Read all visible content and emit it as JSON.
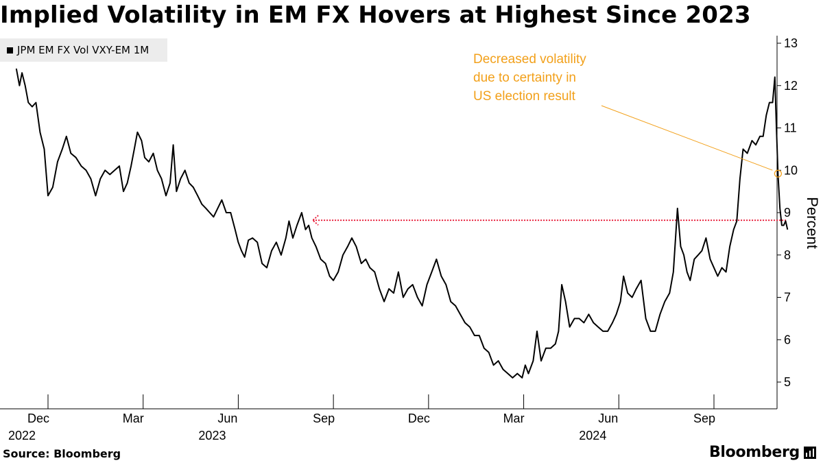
{
  "title": "Implied Volatility in EM FX Hovers at Highest Since 2023",
  "legend_label": "JPM EM FX Vol VXY-EM 1M",
  "source": "Source: Bloomberg",
  "brand": "Bloomberg",
  "colors": {
    "line": "#000000",
    "annotation": "#f2a01a",
    "reference": "#e8203c",
    "legend_bg": "#ececec"
  },
  "chart_data": {
    "type": "line",
    "title": "Implied Volatility in EM FX Hovers at Highest Since 2023",
    "ylabel": "Percent",
    "xlabel": "",
    "ylim": [
      4.5,
      13.2
    ],
    "yticks": [
      5,
      6,
      7,
      8,
      9,
      10,
      11,
      12,
      13
    ],
    "x_unit": "months since 2022-11-01",
    "xlim": [
      0,
      24.8
    ],
    "xticks": [
      {
        "x": 1,
        "label": "Dec",
        "year": "2022"
      },
      {
        "x": 4,
        "label": "Mar",
        "year": ""
      },
      {
        "x": 7,
        "label": "Jun",
        "year": "2023"
      },
      {
        "x": 10,
        "label": "Sep",
        "year": ""
      },
      {
        "x": 13,
        "label": "Dec",
        "year": ""
      },
      {
        "x": 16,
        "label": "Mar",
        "year": ""
      },
      {
        "x": 19,
        "label": "Jun",
        "year": "2024"
      },
      {
        "x": 22,
        "label": "Sep",
        "year": ""
      }
    ],
    "series": [
      {
        "name": "JPM EM FX Vol VXY-EM 1M",
        "points": [
          [
            0.0,
            12.4
          ],
          [
            0.1,
            12.0
          ],
          [
            0.18,
            12.3
          ],
          [
            0.28,
            12.0
          ],
          [
            0.38,
            11.6
          ],
          [
            0.5,
            11.5
          ],
          [
            0.62,
            11.6
          ],
          [
            0.75,
            10.9
          ],
          [
            0.88,
            10.5
          ],
          [
            1.0,
            9.4
          ],
          [
            1.15,
            9.6
          ],
          [
            1.3,
            10.2
          ],
          [
            1.45,
            10.5
          ],
          [
            1.58,
            10.8
          ],
          [
            1.72,
            10.4
          ],
          [
            1.88,
            10.3
          ],
          [
            2.05,
            10.1
          ],
          [
            2.2,
            10.0
          ],
          [
            2.35,
            9.8
          ],
          [
            2.5,
            9.4
          ],
          [
            2.65,
            9.8
          ],
          [
            2.8,
            10.0
          ],
          [
            2.95,
            9.9
          ],
          [
            3.1,
            10.0
          ],
          [
            3.25,
            10.1
          ],
          [
            3.38,
            9.5
          ],
          [
            3.5,
            9.7
          ],
          [
            3.62,
            10.1
          ],
          [
            3.72,
            10.5
          ],
          [
            3.82,
            10.9
          ],
          [
            3.95,
            10.7
          ],
          [
            4.05,
            10.3
          ],
          [
            4.18,
            10.2
          ],
          [
            4.32,
            10.4
          ],
          [
            4.45,
            10.0
          ],
          [
            4.58,
            9.8
          ],
          [
            4.72,
            9.4
          ],
          [
            4.85,
            9.7
          ],
          [
            4.95,
            10.6
          ],
          [
            5.05,
            9.5
          ],
          [
            5.18,
            9.8
          ],
          [
            5.32,
            10.0
          ],
          [
            5.45,
            9.7
          ],
          [
            5.58,
            9.6
          ],
          [
            5.72,
            9.4
          ],
          [
            5.85,
            9.2
          ],
          [
            5.98,
            9.1
          ],
          [
            6.1,
            9.0
          ],
          [
            6.22,
            8.9
          ],
          [
            6.35,
            9.1
          ],
          [
            6.48,
            9.3
          ],
          [
            6.62,
            9.0
          ],
          [
            6.76,
            9.0
          ],
          [
            6.9,
            8.6
          ],
          [
            7.0,
            8.3
          ],
          [
            7.1,
            8.1
          ],
          [
            7.2,
            7.95
          ],
          [
            7.32,
            8.35
          ],
          [
            7.45,
            8.4
          ],
          [
            7.6,
            8.3
          ],
          [
            7.75,
            7.8
          ],
          [
            7.9,
            7.7
          ],
          [
            8.05,
            8.1
          ],
          [
            8.2,
            8.3
          ],
          [
            8.35,
            8.0
          ],
          [
            8.5,
            8.4
          ],
          [
            8.6,
            8.8
          ],
          [
            8.72,
            8.4
          ],
          [
            8.85,
            8.7
          ],
          [
            9.0,
            9.0
          ],
          [
            9.12,
            8.6
          ],
          [
            9.22,
            8.7
          ],
          [
            9.32,
            8.4
          ],
          [
            9.45,
            8.2
          ],
          [
            9.6,
            7.9
          ],
          [
            9.75,
            7.8
          ],
          [
            9.88,
            7.5
          ],
          [
            10.0,
            7.4
          ],
          [
            10.15,
            7.6
          ],
          [
            10.3,
            8.0
          ],
          [
            10.45,
            8.2
          ],
          [
            10.58,
            8.4
          ],
          [
            10.72,
            8.2
          ],
          [
            10.88,
            7.8
          ],
          [
            11.02,
            7.9
          ],
          [
            11.15,
            7.7
          ],
          [
            11.3,
            7.6
          ],
          [
            11.45,
            7.2
          ],
          [
            11.6,
            6.9
          ],
          [
            11.75,
            7.2
          ],
          [
            11.9,
            7.1
          ],
          [
            12.05,
            7.6
          ],
          [
            12.2,
            7.0
          ],
          [
            12.35,
            7.2
          ],
          [
            12.5,
            7.3
          ],
          [
            12.65,
            7.0
          ],
          [
            12.8,
            6.8
          ],
          [
            12.95,
            7.3
          ],
          [
            13.1,
            7.6
          ],
          [
            13.25,
            7.9
          ],
          [
            13.4,
            7.5
          ],
          [
            13.55,
            7.3
          ],
          [
            13.7,
            6.9
          ],
          [
            13.85,
            6.8
          ],
          [
            14.0,
            6.6
          ],
          [
            14.15,
            6.4
          ],
          [
            14.3,
            6.3
          ],
          [
            14.45,
            6.1
          ],
          [
            14.6,
            6.1
          ],
          [
            14.75,
            5.8
          ],
          [
            14.9,
            5.7
          ],
          [
            15.05,
            5.4
          ],
          [
            15.2,
            5.5
          ],
          [
            15.35,
            5.3
          ],
          [
            15.5,
            5.2
          ],
          [
            15.65,
            5.1
          ],
          [
            15.8,
            5.2
          ],
          [
            15.95,
            5.1
          ],
          [
            16.05,
            5.4
          ],
          [
            16.15,
            5.2
          ],
          [
            16.3,
            5.5
          ],
          [
            16.42,
            6.2
          ],
          [
            16.55,
            5.5
          ],
          [
            16.7,
            5.8
          ],
          [
            16.85,
            5.8
          ],
          [
            17.0,
            5.9
          ],
          [
            17.1,
            6.2
          ],
          [
            17.2,
            7.3
          ],
          [
            17.32,
            6.9
          ],
          [
            17.45,
            6.3
          ],
          [
            17.6,
            6.5
          ],
          [
            17.75,
            6.5
          ],
          [
            17.9,
            6.4
          ],
          [
            18.05,
            6.6
          ],
          [
            18.2,
            6.4
          ],
          [
            18.35,
            6.3
          ],
          [
            18.5,
            6.2
          ],
          [
            18.65,
            6.2
          ],
          [
            18.8,
            6.4
          ],
          [
            18.92,
            6.6
          ],
          [
            19.05,
            6.9
          ],
          [
            19.15,
            7.5
          ],
          [
            19.28,
            7.1
          ],
          [
            19.42,
            7.0
          ],
          [
            19.55,
            7.2
          ],
          [
            19.7,
            7.4
          ],
          [
            19.85,
            6.5
          ],
          [
            20.0,
            6.2
          ],
          [
            20.15,
            6.2
          ],
          [
            20.3,
            6.6
          ],
          [
            20.45,
            6.9
          ],
          [
            20.6,
            7.1
          ],
          [
            20.72,
            7.6
          ],
          [
            20.85,
            9.1
          ],
          [
            20.95,
            8.2
          ],
          [
            21.05,
            8.0
          ],
          [
            21.15,
            7.6
          ],
          [
            21.25,
            7.4
          ],
          [
            21.38,
            7.9
          ],
          [
            21.5,
            8.0
          ],
          [
            21.62,
            8.1
          ],
          [
            21.75,
            8.4
          ],
          [
            21.88,
            7.9
          ],
          [
            22.0,
            7.7
          ],
          [
            22.12,
            7.5
          ],
          [
            22.25,
            7.7
          ],
          [
            22.38,
            7.6
          ],
          [
            22.5,
            8.2
          ],
          [
            22.62,
            8.6
          ],
          [
            22.72,
            8.8
          ],
          [
            22.82,
            9.8
          ],
          [
            22.92,
            10.5
          ],
          [
            23.05,
            10.4
          ],
          [
            23.2,
            10.7
          ],
          [
            23.32,
            10.6
          ],
          [
            23.45,
            10.8
          ],
          [
            23.55,
            10.8
          ],
          [
            23.65,
            11.3
          ],
          [
            23.75,
            11.6
          ],
          [
            23.85,
            11.6
          ],
          [
            23.92,
            12.2
          ],
          [
            23.97,
            11.0
          ],
          [
            24.02,
            9.9
          ],
          [
            24.08,
            9.1
          ],
          [
            24.14,
            8.7
          ],
          [
            24.2,
            8.7
          ],
          [
            24.26,
            8.8
          ],
          [
            24.32,
            8.6
          ]
        ]
      }
    ],
    "reference_line": {
      "y": 8.82,
      "x_start": 9.35,
      "x_end": 24.3,
      "note": "dotted level line"
    },
    "annotation": {
      "lines": [
        "Decreased volatility",
        "due to certainty in",
        "US election result"
      ],
      "point": {
        "x": 24.02,
        "y": 9.92
      }
    }
  }
}
